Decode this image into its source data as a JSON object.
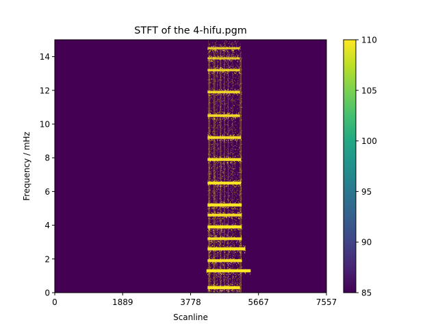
{
  "chart_data": {
    "type": "heatmap",
    "title": "STFT of the 4-hifu.pgm",
    "xlabel": "Scanline",
    "ylabel": "Frequency / mHz",
    "xlim": [
      0,
      7557
    ],
    "ylim": [
      0,
      15
    ],
    "x_ticks": [
      0,
      1889,
      3778,
      5667,
      7557
    ],
    "y_ticks": [
      0,
      2,
      4,
      6,
      8,
      10,
      12,
      14
    ],
    "colormap": "viridis",
    "background_color": "#440154",
    "signal_color": "#fde725",
    "colorbar": {
      "min": 85,
      "max": 110,
      "ticks": [
        85,
        90,
        95,
        100,
        105,
        110
      ]
    },
    "signal_region": {
      "x_start": 4250,
      "x_end": 5200
    },
    "harmonic_bands": [
      {
        "freq": 0.3,
        "x_start": 4250,
        "x_end": 5150,
        "intensity": 1.0
      },
      {
        "freq": 1.3,
        "x_start": 4220,
        "x_end": 5450,
        "intensity": 1.0
      },
      {
        "freq": 1.9,
        "x_start": 4250,
        "x_end": 5200,
        "intensity": 0.9
      },
      {
        "freq": 2.6,
        "x_start": 4250,
        "x_end": 5300,
        "intensity": 1.0
      },
      {
        "freq": 3.2,
        "x_start": 4250,
        "x_end": 5200,
        "intensity": 0.85
      },
      {
        "freq": 3.9,
        "x_start": 4250,
        "x_end": 5200,
        "intensity": 1.0
      },
      {
        "freq": 4.6,
        "x_start": 4250,
        "x_end": 5200,
        "intensity": 0.85
      },
      {
        "freq": 5.2,
        "x_start": 4250,
        "x_end": 5200,
        "intensity": 1.0
      },
      {
        "freq": 6.5,
        "x_start": 4250,
        "x_end": 5180,
        "intensity": 0.95
      },
      {
        "freq": 7.9,
        "x_start": 4250,
        "x_end": 5180,
        "intensity": 0.9
      },
      {
        "freq": 9.2,
        "x_start": 4250,
        "x_end": 5180,
        "intensity": 0.85
      },
      {
        "freq": 10.5,
        "x_start": 4250,
        "x_end": 5150,
        "intensity": 0.8
      },
      {
        "freq": 11.9,
        "x_start": 4250,
        "x_end": 5150,
        "intensity": 0.75
      },
      {
        "freq": 13.2,
        "x_start": 4250,
        "x_end": 5150,
        "intensity": 0.7
      },
      {
        "freq": 13.9,
        "x_start": 4250,
        "x_end": 5150,
        "intensity": 0.55
      },
      {
        "freq": 14.5,
        "x_start": 4250,
        "x_end": 5150,
        "intensity": 0.6
      }
    ]
  }
}
